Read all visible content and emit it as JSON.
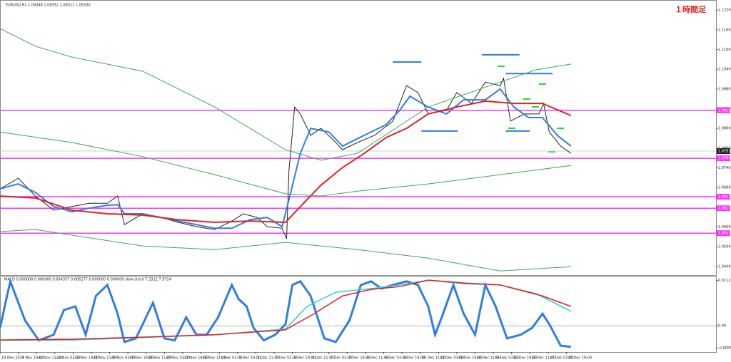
{
  "chart_data": [
    {
      "type": "line",
      "header": "EURUSD,H1  1.08348 1.08352 1.08311 1.08330",
      "title": "１時間足",
      "xlim": [
        0,
        627
      ],
      "xticks": [
        {
          "value": 0,
          "label": "19 Nov 2015"
        },
        {
          "value": 16,
          "label": "19 Nov 19:00"
        },
        {
          "value": 32,
          "label": "20 Nov 11:00"
        },
        {
          "value": 48,
          "label": "23 Nov 03:00"
        },
        {
          "value": 64,
          "label": "23 Nov 19:00"
        },
        {
          "value": 80,
          "label": "24 Nov 11:00"
        },
        {
          "value": 96,
          "label": "25 Nov 03:00"
        },
        {
          "value": 112,
          "label": "25 Nov 19:00"
        },
        {
          "value": 128,
          "label": "26 Nov 11:00"
        },
        {
          "value": 144,
          "label": "27 Nov 03:00"
        },
        {
          "value": 160,
          "label": "27 Nov 19:00"
        },
        {
          "value": 176,
          "label": "30 Nov 11:00"
        },
        {
          "value": 192,
          "label": "1 Dec 03:00"
        },
        {
          "value": 208,
          "label": "1 Dec 19:00"
        },
        {
          "value": 224,
          "label": "2 Dec 11:00"
        },
        {
          "value": 240,
          "label": "3 Dec 03:00"
        },
        {
          "value": 256,
          "label": "3 Dec 19:00"
        },
        {
          "value": 272,
          "label": "4 Dec 11:00"
        },
        {
          "value": 288,
          "label": "7 Dec 03:00"
        },
        {
          "value": 304,
          "label": "7 Dec 19:00"
        },
        {
          "value": 320,
          "label": "8 Dec 11:00"
        },
        {
          "value": 336,
          "label": "9 Dec 03:00"
        },
        {
          "value": 352,
          "label": "9 Dec 19:00"
        },
        {
          "value": 368,
          "label": "10 Dec 11:00"
        },
        {
          "value": 384,
          "label": "11 Dec 03:00"
        },
        {
          "value": 400,
          "label": "11 Dec 19:00"
        },
        {
          "value": 416,
          "label": "14 Dec 11:00"
        },
        {
          "value": 432,
          "label": "15 Dec 03:00"
        },
        {
          "value": 448,
          "label": "15 Dec 19:00"
        },
        {
          "value": 464,
          "label": "16 Dec 11:00"
        },
        {
          "value": 480,
          "label": "17 Dec 03:00"
        },
        {
          "value": 496,
          "label": "17 Dec 19:00"
        }
      ],
      "ylim": [
        1.042,
        1.124
      ],
      "yticks": [
        {
          "value": 1.044,
          "label": "1.04400"
        },
        {
          "value": 1.05,
          "label": "1.05000"
        },
        {
          "value": 1.056,
          "label": "1.05600"
        },
        {
          "value": 1.062,
          "label": "1.06200"
        },
        {
          "value": 1.068,
          "label": "1.06800"
        },
        {
          "value": 1.074,
          "label": "1.07400"
        },
        {
          "value": 1.08,
          "label": "1.08000"
        },
        {
          "value": 1.086,
          "label": "1.08600"
        },
        {
          "value": 1.092,
          "label": "1.09200"
        },
        {
          "value": 1.098,
          "label": "1.09800"
        },
        {
          "value": 1.104,
          "label": "1.10400"
        },
        {
          "value": 1.11,
          "label": "1.11000"
        },
        {
          "value": 1.116,
          "label": "1.11600"
        },
        {
          "value": 1.122,
          "label": "1.12200"
        }
      ],
      "series": [
        {
          "color": "#222222",
          "width": 1,
          "x": [
            0,
            16,
            31,
            47,
            63,
            78,
            94,
            103,
            109,
            125,
            141,
            156,
            172,
            188,
            203,
            213,
            225,
            234,
            247,
            251,
            253,
            258,
            263,
            272,
            281,
            291,
            300,
            313,
            328,
            344,
            356,
            366,
            375,
            391,
            400,
            413,
            425,
            438,
            441,
            447,
            459,
            472,
            476,
            481,
            491,
            500
          ],
          "values": [
            1.0676,
            1.0708,
            1.0654,
            1.0611,
            1.0622,
            1.0632,
            1.0632,
            1.0654,
            1.0567,
            1.06,
            1.0589,
            1.0574,
            1.0561,
            1.0552,
            1.0578,
            1.06,
            1.0589,
            1.0561,
            1.0556,
            1.0524,
            1.073,
            1.0925,
            1.0904,
            1.0839,
            1.086,
            1.0828,
            1.0795,
            1.0817,
            1.0839,
            1.0882,
            1.099,
            1.0969,
            1.0904,
            1.0915,
            1.0969,
            1.0936,
            1.1001,
            1.099,
            1.1012,
            1.0882,
            1.0904,
            1.0904,
            1.0936,
            1.0849,
            1.0806,
            1.0784
          ]
        },
        {
          "color": "#2f7ee0",
          "width": 2,
          "x": [
            0,
            16,
            31,
            47,
            63,
            78,
            94,
            103,
            109,
            125,
            156,
            188,
            203,
            219,
            234,
            247,
            253,
            263,
            272,
            288,
            300,
            319,
            338,
            350,
            359,
            375,
            391,
            406,
            425,
            438,
            450,
            463,
            475,
            488,
            500
          ],
          "values": [
            1.0676,
            1.0691,
            1.0665,
            1.0622,
            1.0606,
            1.0617,
            1.0626,
            1.0628,
            1.06,
            1.06,
            1.0578,
            1.0556,
            1.0556,
            1.0582,
            1.0589,
            1.0561,
            1.0643,
            1.0784,
            1.086,
            1.0849,
            1.0806,
            1.0839,
            1.0871,
            1.0915,
            1.0958,
            1.0925,
            1.0904,
            1.0947,
            1.0947,
            1.098,
            1.0925,
            1.0893,
            1.0893,
            1.0839,
            1.0806
          ]
        },
        {
          "color": "#e02020",
          "width": 2,
          "x": [
            0,
            31,
            63,
            94,
            125,
            156,
            188,
            219,
            250,
            263,
            281,
            300,
            319,
            338,
            356,
            375,
            400,
            425,
            450,
            475,
            500
          ],
          "values": [
            1.0654,
            1.0648,
            1.0611,
            1.06,
            1.0596,
            1.0582,
            1.0574,
            1.0578,
            1.0574,
            1.0622,
            1.0687,
            1.0741,
            1.0784,
            1.0832,
            1.086,
            1.0904,
            1.0925,
            1.0943,
            1.0936,
            1.0936,
            1.0899
          ]
        },
        {
          "color": "#3aaa55",
          "width": 1,
          "x": [
            0,
            31,
            63,
            125,
            188,
            250,
            281,
            313,
            375,
            438,
            469,
            500
          ],
          "values": [
            1.1164,
            1.111,
            1.1077,
            1.1034,
            1.0925,
            1.0795,
            1.0763,
            1.0784,
            1.0925,
            1.1001,
            1.1038,
            1.1056
          ]
        },
        {
          "color": "#3aaa55",
          "width": 1,
          "x": [
            0,
            63,
            125,
            188,
            250,
            281,
            313,
            375,
            438,
            500
          ],
          "values": [
            1.0849,
            1.0817,
            1.0774,
            1.0719,
            1.0661,
            1.0654,
            1.0669,
            1.0691,
            1.0719,
            1.0747
          ]
        },
        {
          "color": "#3aaa55",
          "width": 1,
          "x": [
            0,
            31,
            63,
            125,
            188,
            250,
            313,
            375,
            438,
            500
          ],
          "values": [
            1.0546,
            1.0552,
            1.0535,
            1.0502,
            1.0491,
            1.0513,
            1.0491,
            1.0465,
            1.0426,
            1.0439
          ]
        }
      ],
      "levels": [
        {
          "value": 1.0915,
          "label": "1.09150"
        },
        {
          "value": 1.0769,
          "label": "1.07690"
        },
        {
          "value": 1.0652,
          "label": "1.06520"
        },
        {
          "value": 1.0617,
          "label": "1.06170"
        },
        {
          "value": 1.0541,
          "label": "1.05410"
        }
      ],
      "level_color": "#ff33ff",
      "price_line": {
        "value": 1.0791,
        "label": "1.07910"
      },
      "segments": [
        {
          "x": [
            344,
            369
          ],
          "y": 1.1062
        },
        {
          "x": [
            422,
            455
          ],
          "y": 1.1084
        },
        {
          "x": [
            369,
            401
          ],
          "y": 1.0852
        },
        {
          "x": [
            443,
            484
          ],
          "y": 1.1027
        },
        {
          "x": [
            443,
            464
          ],
          "y": 1.0852
        }
      ],
      "segment_color": "#2f7ee0"
    },
    {
      "type": "line",
      "header": "MACD 0.000000 0.000000 0.004357 0.006277 0.000000 0.000000  slow-stoch 7.3312 7.9724",
      "ylim": [
        -0.0063,
        0.0122
      ],
      "yticks": [
        {
          "value": 0.0112,
          "label": "0.011233"
        },
        {
          "value": 0,
          "label": "0.00"
        },
        {
          "value": -0.0055,
          "label": "-0.005512"
        }
      ],
      "series": [
        {
          "color": "#2f7ee0",
          "width": 3,
          "x": [
            0,
            9,
            22,
            34,
            47,
            56,
            66,
            75,
            84,
            94,
            103,
            109,
            119,
            134,
            144,
            153,
            163,
            172,
            181,
            191,
            203,
            209,
            216,
            222,
            231,
            241,
            250,
            256,
            263,
            272,
            284,
            294,
            306,
            316,
            325,
            334,
            344,
            356,
            366,
            375,
            381,
            388,
            397,
            406,
            416,
            425,
            434,
            444,
            456,
            466,
            475,
            481,
            491,
            500
          ],
          "values": [
            -0.0005,
            0.011,
            0.0013,
            -0.0036,
            -0.0022,
            0.0039,
            0.0048,
            -0.0022,
            0.0074,
            0.0101,
            0.003,
            -0.004,
            -0.0031,
            0.0057,
            -0.0031,
            -0.0036,
            0.0021,
            -0.0022,
            -0.0022,
            0.0021,
            0.0101,
            0.0066,
            0.0048,
            -0.0005,
            -0.0036,
            -0.0022,
            0.0004,
            0.0101,
            0.011,
            0.0074,
            -0.0031,
            -0.004,
            0.0013,
            0.0101,
            0.011,
            0.0092,
            0.0101,
            0.011,
            0.0101,
            0.0048,
            -0.0022,
            0.003,
            0.0101,
            0.003,
            -0.0022,
            0.0101,
            0.0048,
            -0.0031,
            -0.0022,
            -0.0005,
            0.003,
            0.0004,
            -0.0049,
            -0.0052
          ]
        },
        {
          "color": "#33cccc",
          "width": 1.5,
          "x": [
            0,
            63,
            125,
            188,
            250,
            269,
            294,
            325,
            350,
            375,
            406,
            438,
            469,
            500
          ],
          "values": [
            -0.0036,
            -0.0035,
            -0.0029,
            -0.0022,
            -0.0008,
            0.0048,
            0.0083,
            0.0092,
            0.0101,
            0.0113,
            0.0104,
            0.0101,
            0.008,
            0.0036
          ]
        },
        {
          "color": "#e02020",
          "width": 1.5,
          "x": [
            0,
            63,
            125,
            188,
            250,
            275,
            300,
            325,
            350,
            375,
            406,
            438,
            475,
            500
          ],
          "values": [
            -0.0035,
            -0.0033,
            -0.0028,
            -0.0022,
            -0.001,
            0.003,
            0.0074,
            0.009,
            0.0097,
            0.0113,
            0.0106,
            0.0101,
            0.0074,
            0.0048
          ]
        }
      ]
    }
  ]
}
